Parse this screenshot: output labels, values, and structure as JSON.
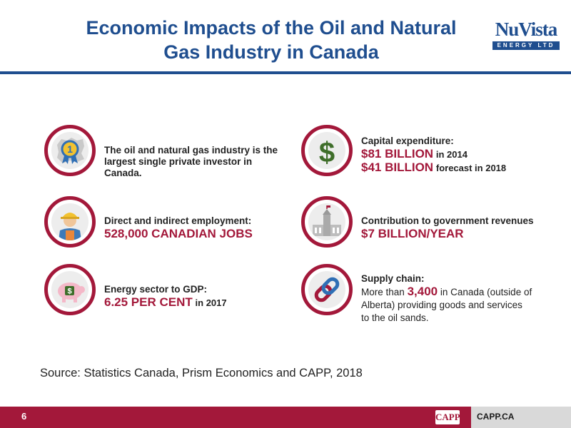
{
  "header": {
    "title_line1": "Economic Impacts of the Oil and Natural",
    "title_line2": "Gas Industry in Canada",
    "logo_word": "NuVista",
    "logo_sub": "ENERGY LTD"
  },
  "items": {
    "investor": {
      "icon": "canada-ribbon-icon",
      "text_line1": "The oil and natural gas industry is the",
      "text_line2": "largest single private investor in Canada."
    },
    "capex": {
      "icon": "dollar-sign-icon",
      "label": "Capital expenditure:",
      "value1": "$81 BILLION",
      "suffix1": "in 2014",
      "value2": "$41 BILLION",
      "suffix2": "forecast in 2018"
    },
    "employment": {
      "icon": "worker-icon",
      "label": "Direct and indirect employment:",
      "value": "528,000 CANADIAN JOBS"
    },
    "revenue": {
      "icon": "parliament-icon",
      "label": "Contribution to government revenues",
      "value": "$7 BILLION/YEAR"
    },
    "gdp": {
      "icon": "piggy-bank-icon",
      "label": "Energy sector to GDP:",
      "value": "6.25 PER CENT",
      "suffix": "in 2017"
    },
    "supply": {
      "icon": "chain-link-icon",
      "label": "Supply chain:",
      "prefix": "More than",
      "value": "3,400",
      "suffix": "in Canada (outside of",
      "line2": "Alberta) providing goods and services",
      "line3": "to the oil sands."
    }
  },
  "source": "Source: Statistics Canada, Prism Economics and CAPP, 2018",
  "footer": {
    "page_number": "6",
    "capp_logo": "CAPP",
    "url": "CAPP.CA"
  },
  "colors": {
    "title_blue": "#1f4e8f",
    "accent_red": "#a3183a",
    "footer_gray": "#d9d9d9"
  }
}
